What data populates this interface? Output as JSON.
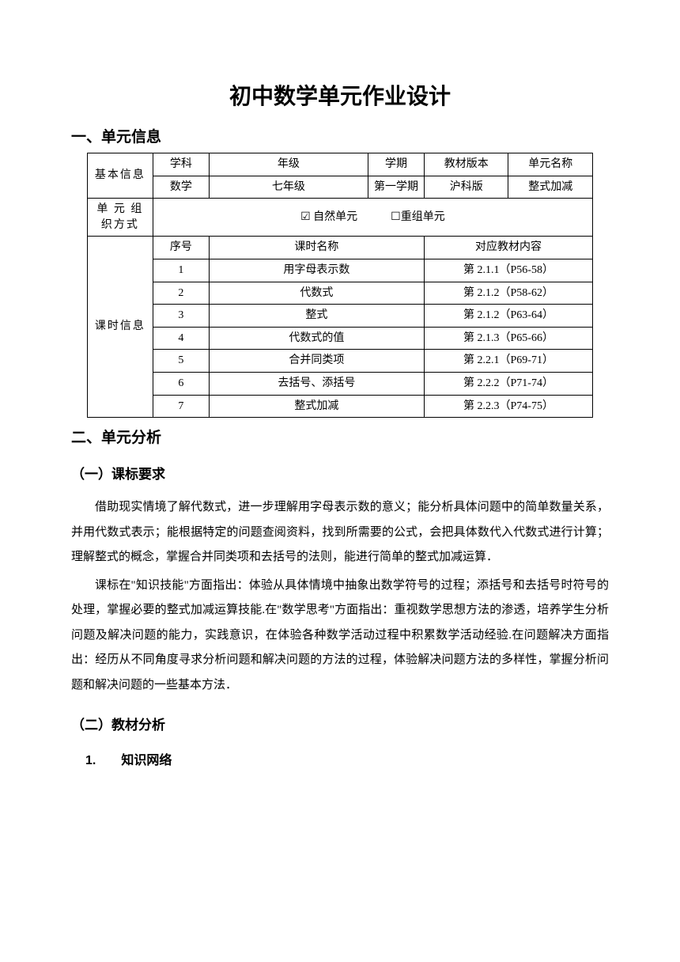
{
  "title": "初中数学单元作业设计",
  "sections": {
    "s1": "一、单元信息",
    "s2": "二、单元分析",
    "sub1": "（一）课标要求",
    "sub2": "（二）教材分析",
    "subsub1": "1.　　知识网络"
  },
  "table": {
    "basic_label": "基本信息",
    "headers": {
      "subject": "学科",
      "grade": "年级",
      "semester": "学期",
      "version": "教材版本",
      "unitname": "单元名称"
    },
    "basic": {
      "subject": "数学",
      "grade": "七年级",
      "semester": "第一学期",
      "version": "沪科版",
      "unitname": "整式加减"
    },
    "org_label": "单 元 组织方式",
    "org_row": "☑ 自然单元　　　☐重组单元",
    "lesson_label": "课时信息",
    "lesson_headers": {
      "no": "序号",
      "name": "课时名称",
      "content": "对应教材内容"
    },
    "lessons": [
      {
        "no": "1",
        "name": "用字母表示数",
        "content": "第 2.1.1（P56-58）"
      },
      {
        "no": "2",
        "name": "代数式",
        "content": "第 2.1.2（P58-62）"
      },
      {
        "no": "3",
        "name": "整式",
        "content": "第 2.1.2（P63-64）"
      },
      {
        "no": "4",
        "name": "代数式的值",
        "content": "第 2.1.3（P65-66）"
      },
      {
        "no": "5",
        "name": "合并同类项",
        "content": "第 2.2.1（P69-71）"
      },
      {
        "no": "6",
        "name": "去括号、添括号",
        "content": "第 2.2.2（P71-74）"
      },
      {
        "no": "7",
        "name": "整式加减",
        "content": "第 2.2.3（P74-75）"
      }
    ]
  },
  "paragraphs": {
    "p1": "借助现实情境了解代数式，进一步理解用字母表示数的意义；能分析具体问题中的简单数量关系，并用代数式表示；能根据特定的问题查阅资料，找到所需要的公式，会把具体数代入代数式进行计算；理解整式的概念，掌握合并同类项和去括号的法则，能进行简单的整式加减运算．",
    "p2": "课标在\"知识技能\"方面指出：体验从具体情境中抽象出数学符号的过程；添括号和去括号时符号的处理，掌握必要的整式加减运算技能.在\"数学思考\"方面指出：重视数学思想方法的渗透，培养学生分析问题及解决问题的能力，实践意识，在体验各种数学活动过程中积累数学活动经验.在问题解决方面指出：经历从不同角度寻求分析问题和解决问题的方法的过程，体验解决问题方法的多样性，掌握分析问题和解决问题的一些基本方法．"
  },
  "style": {
    "background_color": "#ffffff",
    "text_color": "#000000",
    "border_color": "#000000",
    "title_fontsize": 28,
    "heading_fontsize": 19,
    "body_fontsize": 15,
    "table_fontsize": 14
  }
}
